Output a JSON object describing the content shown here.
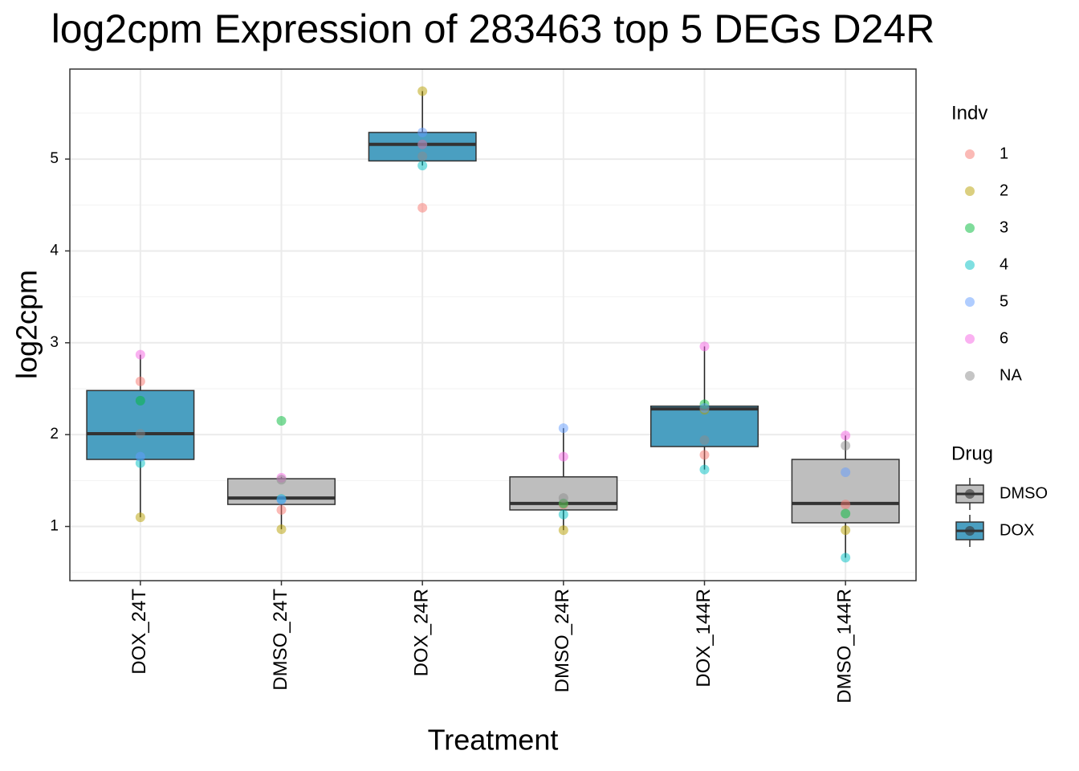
{
  "chart_data": {
    "type": "boxplot",
    "title": "log2cpm Expression of 283463 top 5 DEGs D24R",
    "x_label": "Treatment",
    "y_label": "log2cpm",
    "categories": [
      "DOX_24T",
      "DMSO_24T",
      "DOX_24R",
      "DMSO_24R",
      "DOX_144R",
      "DMSO_144R"
    ],
    "ylim": [
      0.41,
      5.98
    ],
    "yticks": [
      1,
      2,
      3,
      4,
      5
    ],
    "yminor": [
      0.5,
      1.5,
      2.5,
      3.5,
      4.5,
      5.5
    ],
    "grid": true,
    "boxes": [
      {
        "drug": 1,
        "min": 1.1,
        "q1": 1.73,
        "median": 2.01,
        "q3": 2.48,
        "max": 2.87
      },
      {
        "drug": 0,
        "min": 0.97,
        "q1": 1.24,
        "median": 1.31,
        "q3": 1.52,
        "max": 1.54
      },
      {
        "drug": 1,
        "min": 4.93,
        "q1": 4.98,
        "median": 5.16,
        "q3": 5.29,
        "max": 5.74
      },
      {
        "drug": 0,
        "min": 0.96,
        "q1": 1.18,
        "median": 1.25,
        "q3": 1.54,
        "max": 2.07
      },
      {
        "drug": 1,
        "min": 1.62,
        "q1": 1.87,
        "median": 2.28,
        "q3": 2.31,
        "max": 2.96
      },
      {
        "drug": 0,
        "min": 0.66,
        "q1": 1.04,
        "median": 1.25,
        "q3": 1.73,
        "max": 1.99
      }
    ],
    "legend_title": "Indv",
    "series": [
      {
        "name": "1",
        "color": "#F8766D",
        "values": [
          2.58,
          1.18,
          4.47,
          1.24,
          1.78,
          1.24
        ]
      },
      {
        "name": "2",
        "color": "#B79F00",
        "values": [
          1.1,
          0.97,
          5.74,
          0.96,
          2.27,
          0.96
        ]
      },
      {
        "name": "3",
        "color": "#00BA38",
        "values": [
          2.37,
          2.15,
          5.16,
          1.25,
          2.33,
          1.14
        ]
      },
      {
        "name": "4",
        "color": "#00BFC4",
        "values": [
          1.69,
          1.3,
          4.93,
          1.13,
          1.62,
          0.66
        ]
      },
      {
        "name": "5",
        "color": "#619CFF",
        "values": [
          1.76,
          1.29,
          5.29,
          2.07,
          2.29,
          1.59
        ]
      },
      {
        "name": "6",
        "color": "#F564E3",
        "values": [
          2.87,
          1.53,
          5.16,
          1.76,
          2.96,
          1.99
        ]
      },
      {
        "name": "NA",
        "color": "#8C8C8C",
        "values": [
          2.01,
          1.51,
          5.03,
          1.31,
          1.94,
          1.88
        ]
      }
    ],
    "drug_legend": {
      "title": "Drug",
      "items": [
        {
          "name": "DMSO",
          "color": "#BEBEBE"
        },
        {
          "name": "DOX",
          "color": "#4A9FC1"
        }
      ]
    }
  }
}
